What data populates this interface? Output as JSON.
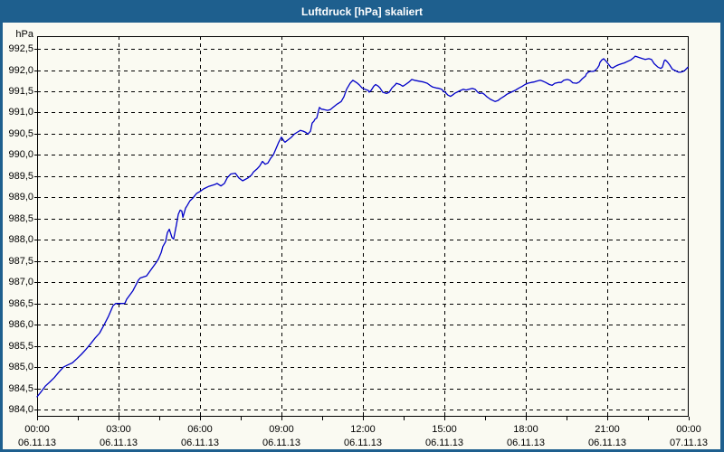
{
  "window": {
    "title": "Luftdruck [hPa] skaliert"
  },
  "colors": {
    "titlebar": "#1e5f8e",
    "border": "#1e5f8e",
    "background": "#fafaf2",
    "grid": "#000000",
    "text": "#000000",
    "line": "#0000c8"
  },
  "chart_data": {
    "type": "line",
    "title": "Luftdruck [hPa] skaliert",
    "ylabel": "hPa",
    "xlabel": "",
    "grid": "dashed",
    "legend": "none",
    "xlim_hours": [
      0,
      24
    ],
    "ylim": [
      983.83,
      992.8
    ],
    "minor_tick_step_hours": 1.5,
    "y_ticks": [
      {
        "value": 992.5,
        "label": "992,5"
      },
      {
        "value": 992.0,
        "label": "992,0"
      },
      {
        "value": 991.5,
        "label": "991,5"
      },
      {
        "value": 991.0,
        "label": "991,0"
      },
      {
        "value": 990.5,
        "label": "990,5"
      },
      {
        "value": 990.0,
        "label": "990,0"
      },
      {
        "value": 989.5,
        "label": "989,5"
      },
      {
        "value": 989.0,
        "label": "989,0"
      },
      {
        "value": 988.5,
        "label": "988,5"
      },
      {
        "value": 988.0,
        "label": "988,0"
      },
      {
        "value": 987.5,
        "label": "987,5"
      },
      {
        "value": 987.0,
        "label": "987,0"
      },
      {
        "value": 986.5,
        "label": "986,5"
      },
      {
        "value": 986.0,
        "label": "986,0"
      },
      {
        "value": 985.5,
        "label": "985,5"
      },
      {
        "value": 985.0,
        "label": "985,0"
      },
      {
        "value": 984.5,
        "label": "984,5"
      },
      {
        "value": 984.0,
        "label": "984,0"
      }
    ],
    "x_ticks": [
      {
        "hours": 0,
        "time": "00:00",
        "date": "06.11.13"
      },
      {
        "hours": 3,
        "time": "03:00",
        "date": "06.11.13"
      },
      {
        "hours": 6,
        "time": "06:00",
        "date": "06.11.13"
      },
      {
        "hours": 9,
        "time": "09:00",
        "date": "06.11.13"
      },
      {
        "hours": 12,
        "time": "12:00",
        "date": "06.11.13"
      },
      {
        "hours": 15,
        "time": "15:00",
        "date": "06.11.13"
      },
      {
        "hours": 18,
        "time": "18:00",
        "date": "06.11.13"
      },
      {
        "hours": 21,
        "time": "21:00",
        "date": "06.11.13"
      },
      {
        "hours": 24,
        "time": "00:00",
        "date": "07.11.13"
      }
    ],
    "series": [
      {
        "name": "Luftdruck",
        "unit": "hPa",
        "points": [
          [
            0.0,
            984.3
          ],
          [
            0.15,
            984.42
          ],
          [
            0.3,
            984.55
          ],
          [
            0.47,
            984.65
          ],
          [
            0.63,
            984.75
          ],
          [
            0.8,
            984.88
          ],
          [
            0.97,
            985.0
          ],
          [
            1.13,
            985.05
          ],
          [
            1.3,
            985.1
          ],
          [
            1.47,
            985.2
          ],
          [
            1.63,
            985.3
          ],
          [
            1.8,
            985.42
          ],
          [
            1.97,
            985.55
          ],
          [
            2.13,
            985.68
          ],
          [
            2.3,
            985.8
          ],
          [
            2.47,
            986.0
          ],
          [
            2.63,
            986.2
          ],
          [
            2.8,
            986.45
          ],
          [
            2.9,
            986.5
          ],
          [
            3.23,
            986.5
          ],
          [
            3.3,
            986.6
          ],
          [
            3.53,
            986.8
          ],
          [
            3.73,
            987.05
          ],
          [
            3.8,
            987.1
          ],
          [
            4.03,
            987.15
          ],
          [
            4.2,
            987.3
          ],
          [
            4.37,
            987.45
          ],
          [
            4.47,
            987.55
          ],
          [
            4.57,
            987.7
          ],
          [
            4.63,
            987.84
          ],
          [
            4.73,
            987.95
          ],
          [
            4.8,
            988.17
          ],
          [
            4.87,
            988.25
          ],
          [
            4.97,
            988.05
          ],
          [
            5.03,
            988.02
          ],
          [
            5.13,
            988.35
          ],
          [
            5.2,
            988.6
          ],
          [
            5.27,
            988.7
          ],
          [
            5.33,
            988.68
          ],
          [
            5.37,
            988.53
          ],
          [
            5.47,
            988.75
          ],
          [
            5.53,
            988.81
          ],
          [
            5.63,
            988.92
          ],
          [
            5.73,
            988.98
          ],
          [
            5.87,
            989.09
          ],
          [
            6.0,
            989.14
          ],
          [
            6.13,
            989.2
          ],
          [
            6.33,
            989.26
          ],
          [
            6.53,
            989.3
          ],
          [
            6.63,
            989.33
          ],
          [
            6.77,
            989.27
          ],
          [
            6.9,
            989.33
          ],
          [
            7.0,
            989.46
          ],
          [
            7.13,
            989.55
          ],
          [
            7.3,
            989.57
          ],
          [
            7.43,
            989.46
          ],
          [
            7.57,
            989.39
          ],
          [
            7.77,
            989.46
          ],
          [
            7.9,
            989.53
          ],
          [
            7.97,
            989.6
          ],
          [
            8.1,
            989.67
          ],
          [
            8.2,
            989.74
          ],
          [
            8.3,
            989.85
          ],
          [
            8.4,
            989.78
          ],
          [
            8.5,
            989.81
          ],
          [
            8.6,
            989.92
          ],
          [
            8.7,
            990.0
          ],
          [
            8.8,
            990.15
          ],
          [
            8.9,
            990.3
          ],
          [
            9.0,
            990.42
          ],
          [
            9.1,
            990.32
          ],
          [
            9.13,
            990.3
          ],
          [
            9.23,
            990.35
          ],
          [
            9.37,
            990.42
          ],
          [
            9.47,
            990.49
          ],
          [
            9.57,
            990.53
          ],
          [
            9.7,
            990.58
          ],
          [
            9.8,
            990.56
          ],
          [
            9.9,
            990.53
          ],
          [
            9.97,
            990.49
          ],
          [
            10.07,
            990.56
          ],
          [
            10.13,
            990.75
          ],
          [
            10.2,
            990.8
          ],
          [
            10.23,
            990.84
          ],
          [
            10.3,
            990.87
          ],
          [
            10.37,
            991.05
          ],
          [
            10.4,
            991.12
          ],
          [
            10.47,
            991.08
          ],
          [
            10.57,
            991.07
          ],
          [
            10.7,
            991.05
          ],
          [
            10.8,
            991.07
          ],
          [
            10.9,
            991.12
          ],
          [
            11.03,
            991.19
          ],
          [
            11.13,
            991.23
          ],
          [
            11.2,
            991.26
          ],
          [
            11.3,
            991.37
          ],
          [
            11.4,
            991.55
          ],
          [
            11.53,
            991.69
          ],
          [
            11.63,
            991.76
          ],
          [
            11.73,
            991.72
          ],
          [
            11.8,
            991.69
          ],
          [
            11.87,
            991.65
          ],
          [
            11.97,
            991.58
          ],
          [
            12.07,
            991.55
          ],
          [
            12.2,
            991.52
          ],
          [
            12.23,
            991.48
          ],
          [
            12.3,
            991.52
          ],
          [
            12.4,
            991.62
          ],
          [
            12.47,
            991.66
          ],
          [
            12.57,
            991.62
          ],
          [
            12.63,
            991.58
          ],
          [
            12.73,
            991.48
          ],
          [
            12.87,
            991.45
          ],
          [
            12.97,
            991.48
          ],
          [
            13.07,
            991.58
          ],
          [
            13.2,
            991.66
          ],
          [
            13.23,
            991.69
          ],
          [
            13.37,
            991.66
          ],
          [
            13.47,
            991.62
          ],
          [
            13.57,
            991.66
          ],
          [
            13.7,
            991.72
          ],
          [
            13.8,
            991.78
          ],
          [
            13.9,
            991.76
          ],
          [
            14.07,
            991.74
          ],
          [
            14.23,
            991.72
          ],
          [
            14.37,
            991.69
          ],
          [
            14.47,
            991.64
          ],
          [
            14.57,
            991.6
          ],
          [
            14.7,
            991.58
          ],
          [
            14.8,
            991.57
          ],
          [
            14.9,
            991.55
          ],
          [
            14.97,
            991.5
          ],
          [
            15.03,
            991.48
          ],
          [
            15.13,
            991.41
          ],
          [
            15.23,
            991.38
          ],
          [
            15.3,
            991.41
          ],
          [
            15.4,
            991.46
          ],
          [
            15.53,
            991.5
          ],
          [
            15.63,
            991.53
          ],
          [
            15.7,
            991.55
          ],
          [
            15.8,
            991.53
          ],
          [
            15.9,
            991.55
          ],
          [
            16.03,
            991.57
          ],
          [
            16.13,
            991.55
          ],
          [
            16.23,
            991.48
          ],
          [
            16.3,
            991.45
          ],
          [
            16.4,
            991.46
          ],
          [
            16.47,
            991.43
          ],
          [
            16.57,
            991.37
          ],
          [
            16.7,
            991.31
          ],
          [
            16.8,
            991.28
          ],
          [
            16.87,
            991.26
          ],
          [
            16.97,
            991.28
          ],
          [
            17.07,
            991.33
          ],
          [
            17.2,
            991.38
          ],
          [
            17.3,
            991.43
          ],
          [
            17.4,
            991.46
          ],
          [
            17.53,
            991.5
          ],
          [
            17.63,
            991.53
          ],
          [
            17.73,
            991.57
          ],
          [
            17.87,
            991.62
          ],
          [
            17.97,
            991.66
          ],
          [
            18.07,
            991.69
          ],
          [
            18.2,
            991.71
          ],
          [
            18.3,
            991.72
          ],
          [
            18.4,
            991.74
          ],
          [
            18.53,
            991.76
          ],
          [
            18.63,
            991.74
          ],
          [
            18.73,
            991.71
          ],
          [
            18.87,
            991.66
          ],
          [
            18.97,
            991.64
          ],
          [
            19.07,
            991.69
          ],
          [
            19.2,
            991.71
          ],
          [
            19.3,
            991.71
          ],
          [
            19.4,
            991.76
          ],
          [
            19.53,
            991.78
          ],
          [
            19.63,
            991.76
          ],
          [
            19.73,
            991.7
          ],
          [
            19.87,
            991.69
          ],
          [
            19.97,
            991.72
          ],
          [
            20.07,
            991.79
          ],
          [
            20.2,
            991.86
          ],
          [
            20.23,
            991.91
          ],
          [
            20.3,
            991.95
          ],
          [
            20.37,
            991.97
          ],
          [
            20.47,
            991.97
          ],
          [
            20.53,
            991.98
          ],
          [
            20.63,
            992.04
          ],
          [
            20.7,
            992.11
          ],
          [
            20.73,
            992.18
          ],
          [
            20.8,
            992.24
          ],
          [
            20.87,
            992.27
          ],
          [
            20.97,
            992.2
          ],
          [
            21.03,
            992.15
          ],
          [
            21.13,
            992.07
          ],
          [
            21.2,
            992.05
          ],
          [
            21.3,
            992.09
          ],
          [
            21.4,
            992.12
          ],
          [
            21.53,
            992.15
          ],
          [
            21.63,
            992.17
          ],
          [
            21.73,
            992.2
          ],
          [
            21.87,
            992.24
          ],
          [
            21.97,
            992.29
          ],
          [
            22.03,
            992.33
          ],
          [
            22.2,
            992.29
          ],
          [
            22.3,
            992.27
          ],
          [
            22.4,
            992.25
          ],
          [
            22.53,
            992.27
          ],
          [
            22.63,
            992.25
          ],
          [
            22.73,
            992.15
          ],
          [
            22.87,
            992.07
          ],
          [
            22.97,
            992.04
          ],
          [
            23.03,
            992.07
          ],
          [
            23.07,
            992.15
          ],
          [
            23.1,
            992.22
          ],
          [
            23.13,
            992.24
          ],
          [
            23.17,
            992.22
          ],
          [
            23.23,
            992.18
          ],
          [
            23.3,
            992.12
          ],
          [
            23.4,
            992.02
          ],
          [
            23.53,
            991.98
          ],
          [
            23.63,
            991.95
          ],
          [
            23.7,
            991.95
          ],
          [
            23.8,
            991.97
          ],
          [
            23.87,
            992.0
          ],
          [
            23.97,
            992.07
          ]
        ]
      }
    ]
  }
}
